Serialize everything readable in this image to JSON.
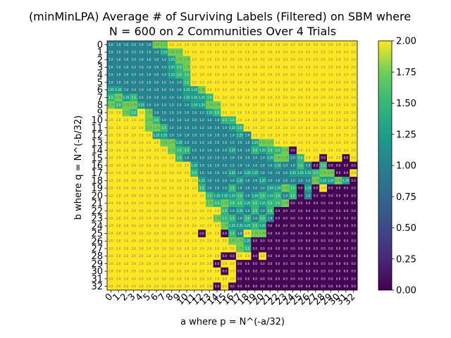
{
  "chart_data": {
    "type": "heatmap",
    "title_lines": [
      "(minMinLPA) Average # of Surviving Labels (Filtered) on SBM where",
      "N = 600 on 2 Communities Over 4 Trials"
    ],
    "xlabel": "a where p = N^(-a/32)",
    "ylabel": "b where q = N^(-b/32)",
    "x_ticks": [
      "0",
      "1",
      "2",
      "3",
      "4",
      "5",
      "6",
      "7",
      "8",
      "9",
      "10",
      "11",
      "12",
      "13",
      "14",
      "15",
      "16",
      "17",
      "18",
      "19",
      "20",
      "21",
      "22",
      "23",
      "24",
      "25",
      "26",
      "27",
      "28",
      "29",
      "30",
      "31",
      "32"
    ],
    "y_ticks": [
      "0",
      "1",
      "2",
      "3",
      "4",
      "5",
      "6",
      "7",
      "8",
      "9",
      "10",
      "11",
      "12",
      "13",
      "14",
      "15",
      "16",
      "17",
      "18",
      "19",
      "20",
      "21",
      "22",
      "23",
      "24",
      "25",
      "26",
      "27",
      "28",
      "29",
      "30",
      "31",
      "32"
    ],
    "colorbar": {
      "colormap": "viridis",
      "range": [
        0.0,
        2.0
      ],
      "ticks": [
        "0.00",
        "0.25",
        "0.50",
        "0.75",
        "1.00",
        "1.25",
        "1.50",
        "1.75",
        "2.00"
      ]
    },
    "values": [
      [
        1,
        1,
        1,
        1,
        1,
        1,
        1.75,
        1.75,
        2,
        2,
        2,
        2,
        2,
        2,
        2,
        2,
        2,
        2,
        2,
        2,
        2,
        2,
        2,
        2,
        2,
        2,
        2,
        2,
        2,
        2,
        2,
        2,
        2
      ],
      [
        1,
        1,
        1,
        1,
        1,
        1,
        1,
        1.25,
        1.75,
        1.75,
        2,
        2,
        2,
        2,
        2,
        2,
        2,
        2,
        2,
        2,
        2,
        2,
        2,
        2,
        2,
        2,
        2,
        2,
        2,
        2,
        2,
        2,
        2
      ],
      [
        1,
        1,
        1,
        1,
        1,
        1,
        1,
        1,
        1.25,
        1.75,
        1.75,
        2,
        2,
        2,
        2,
        2,
        2,
        2,
        2,
        2,
        2,
        2,
        2,
        2,
        2,
        2,
        2,
        2,
        2,
        2,
        2,
        2,
        2
      ],
      [
        1,
        1,
        1,
        1,
        1,
        1,
        1,
        1,
        1.25,
        1.5,
        1.75,
        2,
        2,
        2,
        2,
        2,
        2,
        2,
        2,
        2,
        2,
        2,
        2,
        2,
        2,
        2,
        2,
        2,
        2,
        2,
        2,
        2,
        2
      ],
      [
        1,
        1,
        1,
        1,
        1,
        1,
        1,
        1,
        1.25,
        1.5,
        1.5,
        2,
        2,
        2,
        2,
        2,
        2,
        2,
        2,
        2,
        2,
        2,
        2,
        2,
        2,
        2,
        2,
        2,
        2,
        2,
        2,
        2,
        2
      ],
      [
        1,
        1,
        1,
        1,
        1,
        1,
        1,
        1,
        1,
        1,
        1.5,
        2,
        2,
        2,
        2,
        2,
        2,
        2,
        2,
        2,
        2,
        2,
        2,
        2,
        2,
        2,
        2,
        2,
        2,
        2,
        2,
        2,
        2
      ],
      [
        1.25,
        1.25,
        1,
        1,
        1,
        1,
        1,
        1,
        1,
        1,
        1.25,
        1.25,
        1.75,
        2,
        2,
        2,
        2,
        2,
        2,
        2,
        2,
        2,
        2,
        2,
        2,
        2,
        2,
        2,
        2,
        2,
        2,
        2,
        2
      ],
      [
        1.5,
        1.75,
        1.25,
        1.5,
        1,
        1,
        1,
        1,
        1,
        1,
        1.25,
        1.25,
        1.25,
        1.5,
        2,
        2,
        2,
        2,
        2,
        2,
        2,
        2,
        2,
        2,
        2,
        2,
        2,
        2,
        2,
        2,
        2,
        2,
        2
      ],
      [
        1.75,
        1.5,
        1.75,
        1.75,
        1.25,
        1,
        1,
        1,
        1,
        1,
        1,
        1.25,
        1.25,
        1.75,
        1.75,
        2,
        2,
        2,
        2,
        2,
        2,
        2,
        2,
        2,
        2,
        2,
        2,
        2,
        2,
        2,
        2,
        2,
        2
      ],
      [
        2,
        2,
        1.75,
        1.5,
        2,
        1.75,
        1,
        1,
        1,
        1,
        1,
        1,
        1,
        1.25,
        1.5,
        2,
        2,
        2,
        2,
        2,
        2,
        2,
        2,
        2,
        2,
        2,
        2,
        2,
        2,
        2,
        2,
        2,
        2
      ],
      [
        2,
        2,
        2,
        2,
        2,
        1.75,
        1.5,
        1,
        1,
        1,
        1,
        1,
        1,
        1,
        1,
        1.5,
        1.5,
        2,
        2,
        2,
        2,
        2,
        2,
        2,
        2,
        2,
        2,
        2,
        2,
        2,
        2,
        2,
        2
      ],
      [
        2,
        2,
        2,
        2,
        2,
        1.75,
        1.75,
        1.5,
        1,
        1,
        1,
        1,
        1,
        1,
        1,
        1,
        1.25,
        1.5,
        2,
        2,
        2,
        2,
        2,
        2,
        2,
        2,
        2,
        2,
        2,
        2,
        2,
        2,
        2
      ],
      [
        2,
        2,
        2,
        2,
        2,
        2,
        1.25,
        1.25,
        1,
        1,
        1,
        1,
        1,
        1,
        1,
        1,
        1,
        1.25,
        1,
        2,
        2,
        2,
        2,
        2,
        2,
        2,
        2,
        2,
        2,
        2,
        2,
        2,
        2
      ],
      [
        2,
        2,
        2,
        2,
        2,
        2,
        2,
        1.75,
        1.75,
        1.25,
        1,
        1,
        1,
        1,
        1,
        1,
        1,
        1,
        1,
        1.25,
        1.75,
        1.75,
        2,
        2,
        2,
        2,
        2,
        2,
        2,
        2,
        2,
        2,
        2
      ],
      [
        2,
        2,
        2,
        2,
        2,
        2,
        2,
        2,
        1.75,
        1.5,
        1.5,
        1,
        1,
        1,
        1,
        1,
        1.25,
        1,
        1,
        1.5,
        1.25,
        1.5,
        1.5,
        1.75,
        0,
        2,
        2,
        2,
        2,
        2,
        2,
        2,
        2
      ],
      [
        2,
        2,
        2,
        2,
        2,
        2,
        2,
        2,
        2,
        1.5,
        1,
        1,
        1,
        1,
        1,
        1,
        1,
        1,
        1,
        1,
        1,
        1.25,
        1.75,
        1.75,
        1,
        1.5,
        2,
        2,
        0,
        2,
        2,
        0,
        2
      ],
      [
        2,
        2,
        2,
        2,
        2,
        2,
        2,
        2,
        2,
        2,
        2,
        1.25,
        1,
        1,
        1,
        1,
        1,
        1,
        1,
        1,
        1,
        1,
        1.25,
        1,
        1,
        1.5,
        1,
        0,
        1.5,
        0,
        0,
        0,
        0
      ],
      [
        2,
        2,
        2,
        2,
        2,
        2,
        2,
        2,
        2,
        2,
        2,
        1.5,
        1,
        1,
        1,
        1,
        1.25,
        1,
        1.25,
        1.25,
        1,
        1,
        1,
        1,
        1.25,
        1.25,
        1.25,
        1.5,
        1.75,
        1.75,
        0,
        0,
        2
      ],
      [
        2,
        2,
        2,
        2,
        2,
        2,
        2,
        2,
        2,
        2,
        2,
        2,
        1.25,
        1,
        1,
        1,
        1,
        1.25,
        1,
        1,
        1.25,
        1,
        1,
        1,
        1,
        1,
        1,
        1.75,
        1.25,
        1.25,
        1.75,
        1.25,
        0
      ],
      [
        2,
        2,
        2,
        2,
        2,
        2,
        2,
        2,
        2,
        2,
        2,
        2,
        1.5,
        1,
        1,
        1,
        1.5,
        1,
        1,
        1,
        1,
        1.25,
        1.25,
        1.75,
        1.5,
        0,
        1.25,
        0,
        2,
        0,
        0,
        0,
        0
      ],
      [
        2,
        2,
        2,
        2,
        2,
        2,
        2,
        2,
        2,
        2,
        2,
        2,
        2,
        1.5,
        1.25,
        1.25,
        1.25,
        1.5,
        1,
        1.25,
        1.5,
        1.25,
        1.5,
        1,
        1.5,
        0,
        1,
        0,
        0,
        0,
        0,
        0,
        0
      ],
      [
        2,
        2,
        2,
        2,
        2,
        2,
        2,
        2,
        2,
        2,
        2,
        2,
        2,
        1.75,
        1.5,
        1.75,
        1.5,
        1.5,
        1.25,
        1.5,
        1.25,
        1.5,
        1.5,
        1.75,
        0,
        0,
        0,
        0,
        0,
        0,
        0,
        0,
        0
      ],
      [
        2,
        2,
        2,
        2,
        2,
        2,
        2,
        2,
        2,
        2,
        2,
        2,
        2,
        2,
        2,
        1.5,
        1,
        1.25,
        1,
        1.5,
        1,
        1.5,
        0,
        0,
        0,
        0,
        0,
        0,
        0,
        0,
        0,
        0,
        0
      ],
      [
        2,
        2,
        2,
        2,
        2,
        2,
        2,
        2,
        2,
        2,
        2,
        2,
        2,
        2,
        1.75,
        1.5,
        1.5,
        1,
        1.5,
        1,
        1.5,
        1,
        0,
        0,
        0,
        0,
        0,
        0,
        0,
        0,
        0,
        0,
        0
      ],
      [
        2,
        2,
        2,
        2,
        2,
        2,
        2,
        2,
        2,
        2,
        2,
        2,
        2,
        2,
        2,
        1.75,
        1.25,
        1.25,
        1.25,
        1.5,
        1.25,
        0,
        0,
        0,
        0,
        0,
        0,
        0,
        0,
        0,
        0,
        0,
        0
      ],
      [
        2,
        2,
        2,
        2,
        2,
        2,
        2,
        2,
        2,
        2,
        2,
        2,
        0,
        2,
        2,
        0,
        1.5,
        1,
        2,
        1.75,
        1.75,
        0,
        0,
        0,
        0,
        0,
        0,
        0,
        0,
        0,
        0,
        0,
        0
      ],
      [
        2,
        2,
        2,
        2,
        2,
        2,
        2,
        2,
        2,
        2,
        2,
        2,
        2,
        2,
        2,
        2,
        1.75,
        1.75,
        1.25,
        0,
        0,
        0,
        0,
        0,
        0,
        0,
        0,
        0,
        0,
        0,
        0,
        0,
        0
      ],
      [
        2,
        2,
        2,
        2,
        2,
        2,
        2,
        2,
        2,
        2,
        2,
        2,
        2,
        2,
        2,
        2,
        2,
        1.75,
        1.5,
        0,
        0,
        0,
        0,
        0,
        0,
        0,
        0,
        0,
        0,
        0,
        0,
        0,
        0
      ],
      [
        2,
        2,
        2,
        2,
        2,
        2,
        2,
        2,
        2,
        2,
        2,
        2,
        2,
        2,
        2,
        0,
        0,
        2,
        2,
        0,
        2,
        0,
        0,
        0,
        0,
        0,
        0,
        0,
        0,
        0,
        0,
        0,
        0
      ],
      [
        2,
        2,
        2,
        2,
        2,
        2,
        2,
        2,
        2,
        2,
        2,
        2,
        2,
        2,
        0,
        2,
        2,
        0,
        0,
        0,
        0,
        0,
        0,
        0,
        0,
        0,
        0,
        0,
        0,
        0,
        0,
        0,
        0
      ],
      [
        2,
        2,
        2,
        2,
        2,
        2,
        2,
        2,
        2,
        2,
        2,
        2,
        2,
        2,
        2,
        0,
        2,
        0,
        0,
        0,
        0,
        0,
        0,
        0,
        0,
        0,
        0,
        0,
        0,
        0,
        0,
        0,
        0
      ],
      [
        2,
        2,
        2,
        2,
        2,
        2,
        2,
        2,
        2,
        2,
        2,
        2,
        2,
        2,
        2,
        2,
        2,
        0,
        0,
        0,
        0,
        0,
        0,
        0,
        0,
        0,
        0,
        0,
        0,
        0,
        0,
        0,
        0
      ],
      [
        2,
        2,
        2,
        2,
        2,
        2,
        2,
        2,
        2,
        2,
        2,
        2,
        2,
        2,
        0,
        2,
        0,
        0,
        0,
        0,
        0,
        0,
        0,
        0,
        0,
        0,
        0,
        0,
        0,
        0,
        0,
        0,
        0
      ]
    ]
  }
}
